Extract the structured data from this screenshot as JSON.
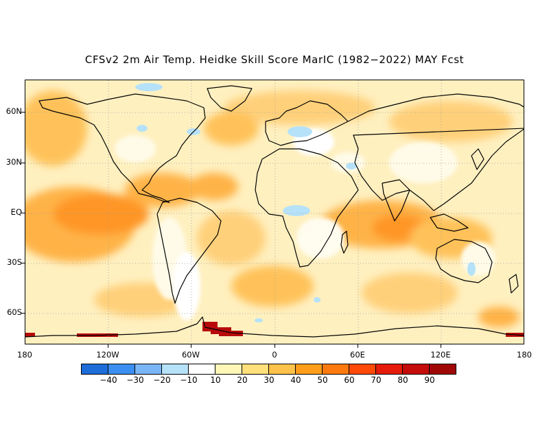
{
  "title": "CFSv2 2m Air Temp. Heidke Skill Score MarIC (1982−2022) MAY Fcst",
  "map": {
    "lat_labels": [
      "60N",
      "30N",
      "EQ",
      "30S",
      "60S"
    ],
    "lon_labels": [
      "180",
      "120W",
      "60W",
      "0",
      "60E",
      "120E",
      "180"
    ],
    "grid": "dotted"
  },
  "colorbar": {
    "labels": [
      "−40",
      "−30",
      "−20",
      "−10",
      "10",
      "20",
      "30",
      "40",
      "50",
      "60",
      "70",
      "80",
      "90"
    ],
    "colors": [
      "#1e6cd8",
      "#3b8ff0",
      "#7ab6f7",
      "#b6e2f9",
      "#ffffff",
      "#fff7b8",
      "#ffe07a",
      "#ffc24a",
      "#ff9e1a",
      "#ff7a0e",
      "#ff4a08",
      "#e51c0a",
      "#c40c0a",
      "#a00808"
    ]
  }
}
